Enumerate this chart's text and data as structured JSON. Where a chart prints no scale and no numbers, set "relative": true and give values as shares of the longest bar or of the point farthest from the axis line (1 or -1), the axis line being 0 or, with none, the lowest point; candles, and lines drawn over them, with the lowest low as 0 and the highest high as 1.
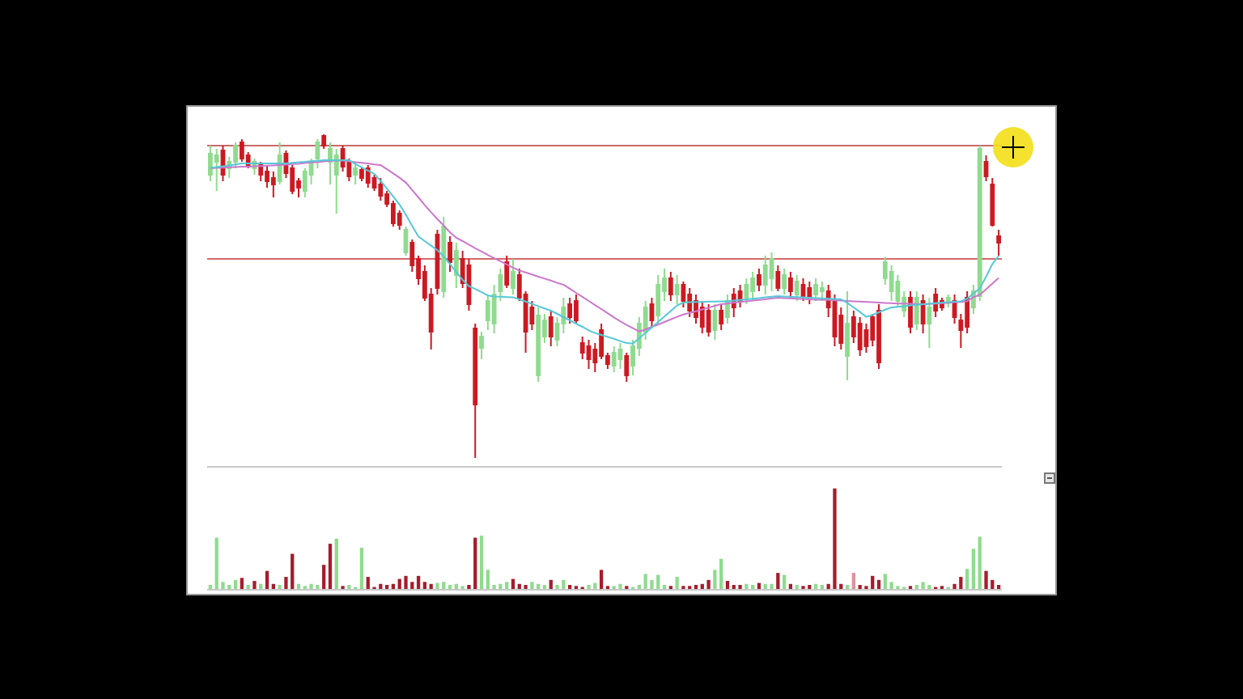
{
  "chart_data": [
    {
      "type": "candlestick",
      "relative": true,
      "categories": [
        null,
        null,
        null,
        null,
        null,
        null,
        null,
        null,
        null,
        null,
        null,
        null,
        null,
        null,
        null,
        null,
        null,
        null,
        null,
        null,
        null,
        null,
        null,
        null,
        null,
        null,
        null,
        null,
        null,
        null,
        null,
        null,
        null,
        null,
        null,
        null,
        null,
        null,
        null,
        null,
        null,
        null,
        null,
        null,
        null,
        null,
        null,
        null,
        null,
        null,
        null,
        null,
        null,
        null,
        null,
        null,
        null,
        null,
        null,
        null,
        null,
        null,
        null,
        null,
        null,
        null,
        null,
        null,
        null,
        null,
        null,
        null,
        null,
        null,
        null,
        null,
        null,
        null,
        null,
        null,
        null,
        null,
        null,
        null,
        null,
        null,
        null,
        null,
        null,
        null,
        null,
        null,
        null,
        null,
        null,
        null,
        null,
        null,
        null,
        null,
        null,
        null,
        null,
        null,
        null,
        null,
        null,
        null,
        null,
        null,
        null,
        null,
        null,
        null,
        null,
        null,
        null,
        null,
        null,
        null,
        null,
        null,
        null,
        null,
        null,
        null
      ],
      "ohlc": [
        [
          0.875,
          0.965,
          0.855,
          0.94
        ],
        [
          0.915,
          0.955,
          0.825,
          0.935
        ],
        [
          0.95,
          0.965,
          0.855,
          0.875
        ],
        [
          0.895,
          0.93,
          0.865,
          0.915
        ],
        [
          0.915,
          0.975,
          0.895,
          0.965
        ],
        [
          0.975,
          0.985,
          0.915,
          0.925
        ],
        [
          0.935,
          0.945,
          0.895,
          0.905
        ],
        [
          0.895,
          0.925,
          0.875,
          0.915
        ],
        [
          0.905,
          0.915,
          0.855,
          0.875
        ],
        [
          0.885,
          0.905,
          0.835,
          0.855
        ],
        [
          0.865,
          0.885,
          0.805,
          0.845
        ],
        [
          0.855,
          0.975,
          0.845,
          0.935
        ],
        [
          0.94,
          0.95,
          0.865,
          0.88
        ],
        [
          0.895,
          0.905,
          0.815,
          0.825
        ],
        [
          0.855,
          0.865,
          0.805,
          0.835
        ],
        [
          0.825,
          0.895,
          0.805,
          0.885
        ],
        [
          0.875,
          0.925,
          0.845,
          0.915
        ],
        [
          0.925,
          0.985,
          0.895,
          0.975
        ],
        [
          0.995,
          1,
          0.955,
          0.965
        ],
        [
          0.915,
          0.975,
          0.845,
          0.955
        ],
        [
          0.875,
          0.955,
          0.755,
          0.935
        ],
        [
          0.955,
          0.965,
          0.885,
          0.9
        ],
        [
          0.915,
          0.925,
          0.855,
          0.87
        ],
        [
          0.875,
          0.915,
          0.845,
          0.895
        ],
        [
          0.89,
          0.9,
          0.855,
          0.865
        ],
        [
          0.895,
          0.905,
          0.835,
          0.85
        ],
        [
          0.865,
          0.875,
          0.825,
          0.835
        ],
        [
          0.845,
          0.865,
          0.795,
          0.81
        ],
        [
          0.815,
          0.825,
          0.775,
          0.785
        ],
        [
          0.785,
          0.795,
          0.715,
          0.725
        ],
        [
          0.755,
          0.765,
          0.705,
          0.72
        ],
        [
          0.635,
          0.715,
          0.625,
          0.705
        ],
        [
          0.665,
          0.675,
          0.575,
          0.595
        ],
        [
          0.615,
          0.625,
          0.535,
          0.555
        ],
        [
          0.575,
          0.595,
          0.485,
          0.495
        ],
        [
          0.505,
          0.525,
          0.335,
          0.39
        ],
        [
          0.69,
          0.705,
          0.505,
          0.525
        ],
        [
          0.515,
          0.745,
          0.495,
          0.715
        ],
        [
          0.665,
          0.685,
          0.575,
          0.605
        ],
        [
          0.565,
          0.665,
          0.525,
          0.64
        ],
        [
          0.615,
          0.64,
          0.525,
          0.54
        ],
        [
          0.595,
          0.615,
          0.455,
          0.475
        ],
        [
          0.4,
          0.415,
          0,
          0.165
        ],
        [
          0.34,
          0.39,
          0.305,
          0.375
        ],
        [
          0.425,
          0.505,
          0.395,
          0.485
        ],
        [
          0.415,
          0.535,
          0.385,
          0.505
        ],
        [
          0.515,
          0.585,
          0.485,
          0.565
        ],
        [
          0.605,
          0.625,
          0.525,
          0.535
        ],
        [
          0.525,
          0.615,
          0.505,
          0.575
        ],
        [
          0.565,
          0.585,
          0.485,
          0.495
        ],
        [
          0.505,
          0.515,
          0.325,
          0.39
        ],
        [
          0.465,
          0.485,
          0.395,
          0.415
        ],
        [
          0.255,
          0.465,
          0.235,
          0.44
        ],
        [
          0.375,
          0.445,
          0.355,
          0.425
        ],
        [
          0.435,
          0.455,
          0.345,
          0.375
        ],
        [
          0.365,
          0.435,
          0.345,
          0.415
        ],
        [
          0.415,
          0.495,
          0.385,
          0.465
        ],
        [
          0.475,
          0.495,
          0.415,
          0.435
        ],
        [
          0.485,
          0.505,
          0.415,
          0.425
        ],
        [
          0.355,
          0.375,
          0.305,
          0.325
        ],
        [
          0.345,
          0.365,
          0.275,
          0.305
        ],
        [
          0.335,
          0.355,
          0.265,
          0.295
        ],
        [
          0.395,
          0.415,
          0.305,
          0.315
        ],
        [
          0.315,
          0.325,
          0.275,
          0.29
        ],
        [
          0.285,
          0.345,
          0.265,
          0.325
        ],
        [
          0.305,
          0.355,
          0.275,
          0.335
        ],
        [
          0.315,
          0.325,
          0.235,
          0.255
        ],
        [
          0.285,
          0.365,
          0.255,
          0.345
        ],
        [
          0.34,
          0.435,
          0.315,
          0.415
        ],
        [
          0.39,
          0.485,
          0.365,
          0.465
        ],
        [
          0.475,
          0.495,
          0.405,
          0.425
        ],
        [
          0.44,
          0.565,
          0.415,
          0.535
        ],
        [
          0.515,
          0.585,
          0.485,
          0.555
        ],
        [
          0.555,
          0.575,
          0.485,
          0.505
        ],
        [
          0.505,
          0.565,
          0.475,
          0.535
        ],
        [
          0.535,
          0.545,
          0.465,
          0.485
        ],
        [
          0.505,
          0.525,
          0.435,
          0.455
        ],
        [
          0.485,
          0.505,
          0.415,
          0.435
        ],
        [
          0.465,
          0.485,
          0.385,
          0.405
        ],
        [
          0.455,
          0.475,
          0.375,
          0.39
        ],
        [
          0.395,
          0.475,
          0.365,
          0.455
        ],
        [
          0.455,
          0.475,
          0.395,
          0.415
        ],
        [
          0.435,
          0.505,
          0.415,
          0.485
        ],
        [
          0.505,
          0.525,
          0.435,
          0.465
        ],
        [
          0.515,
          0.535,
          0.465,
          0.485
        ],
        [
          0.495,
          0.555,
          0.475,
          0.535
        ],
        [
          0.515,
          0.575,
          0.485,
          0.555
        ],
        [
          0.565,
          0.585,
          0.515,
          0.535
        ],
        [
          0.535,
          0.625,
          0.505,
          0.595
        ],
        [
          0.555,
          0.635,
          0.515,
          0.615
        ],
        [
          0.575,
          0.595,
          0.515,
          0.525
        ],
        [
          0.525,
          0.585,
          0.505,
          0.565
        ],
        [
          0.555,
          0.575,
          0.495,
          0.515
        ],
        [
          0.505,
          0.565,
          0.485,
          0.545
        ],
        [
          0.535,
          0.555,
          0.485,
          0.5
        ],
        [
          0.525,
          0.545,
          0.475,
          0.495
        ],
        [
          0.505,
          0.555,
          0.485,
          0.535
        ],
        [
          0.515,
          0.545,
          0.485,
          0.525
        ],
        [
          0.515,
          0.535,
          0.435,
          0.465
        ],
        [
          0.485,
          0.505,
          0.345,
          0.375
        ],
        [
          0.44,
          0.465,
          0.335,
          0.355
        ],
        [
          0.315,
          0.515,
          0.24,
          0.415
        ],
        [
          0.435,
          0.455,
          0.355,
          0.375
        ],
        [
          0.415,
          0.435,
          0.315,
          0.335
        ],
        [
          0.395,
          0.415,
          0.325,
          0.345
        ],
        [
          0.435,
          0.445,
          0.345,
          0.365
        ],
        [
          0.455,
          0.475,
          0.275,
          0.295
        ],
        [
          0.555,
          0.62,
          0.535,
          0.605
        ],
        [
          0.515,
          0.595,
          0.485,
          0.575
        ],
        [
          0.485,
          0.565,
          0.465,
          0.545
        ],
        [
          0.455,
          0.515,
          0.435,
          0.495
        ],
        [
          0.495,
          0.515,
          0.385,
          0.405
        ],
        [
          0.415,
          0.515,
          0.395,
          0.495
        ],
        [
          0.485,
          0.505,
          0.385,
          0.415
        ],
        [
          0.415,
          0.495,
          0.34,
          0.465
        ],
        [
          0.505,
          0.525,
          0.435,
          0.455
        ],
        [
          0.485,
          0.495,
          0.455,
          0.465
        ],
        [
          0.485,
          0.505,
          0.465,
          0.495
        ],
        [
          0.485,
          0.505,
          0.415,
          0.435
        ],
        [
          0.425,
          0.445,
          0.34,
          0.395
        ],
        [
          0.495,
          0.515,
          0.385,
          0.405
        ],
        [
          0.465,
          0.535,
          0.445,
          0.515
        ],
        [
          0.5,
          0.965,
          0.485,
          0.955
        ],
        [
          0.915,
          0.935,
          0.855,
          0.87
        ],
        [
          0.845,
          0.865,
          0.715,
          0.72
        ],
        [
          0.685,
          0.705,
          0.625,
          0.665
        ]
      ],
      "colors": [
        "#8fdb8f",
        "#8fdb8f",
        "#cc1a22",
        "#8fdb8f",
        "#8fdb8f",
        "#cc1a22",
        "#cc1a22",
        "#8fdb8f",
        "#cc1a22",
        "#cc1a22",
        "#cc1a22",
        "#8fdb8f",
        "#cc1a22",
        "#cc1a22",
        "#cc1a22",
        "#8fdb8f",
        "#8fdb8f",
        "#8fdb8f",
        "#cc1a22",
        "#8fdb8f",
        "#8fdb8f",
        "#cc1a22",
        "#cc1a22",
        "#8fdb8f",
        "#cc1a22",
        "#cc1a22",
        "#cc1a22",
        "#cc1a22",
        "#cc1a22",
        "#cc1a22",
        "#cc1a22",
        "#8fdb8f",
        "#cc1a22",
        "#cc1a22",
        "#cc1a22",
        "#cc1a22",
        "#cc1a22",
        "#8fdb8f",
        "#cc1a22",
        "#8fdb8f",
        "#cc1a22",
        "#cc1a22",
        "#cc1a22",
        "#8fdb8f",
        "#8fdb8f",
        "#8fdb8f",
        "#8fdb8f",
        "#cc1a22",
        "#8fdb8f",
        "#cc1a22",
        "#cc1a22",
        "#cc1a22",
        "#8fdb8f",
        "#8fdb8f",
        "#cc1a22",
        "#8fdb8f",
        "#8fdb8f",
        "#cc1a22",
        "#cc1a22",
        "#cc1a22",
        "#cc1a22",
        "#cc1a22",
        "#cc1a22",
        "#cc1a22",
        "#8fdb8f",
        "#8fdb8f",
        "#cc1a22",
        "#8fdb8f",
        "#8fdb8f",
        "#8fdb8f",
        "#cc1a22",
        "#8fdb8f",
        "#8fdb8f",
        "#cc1a22",
        "#8fdb8f",
        "#cc1a22",
        "#cc1a22",
        "#cc1a22",
        "#cc1a22",
        "#cc1a22",
        "#8fdb8f",
        "#cc1a22",
        "#8fdb8f",
        "#cc1a22",
        "#cc1a22",
        "#8fdb8f",
        "#8fdb8f",
        "#cc1a22",
        "#8fdb8f",
        "#8fdb8f",
        "#cc1a22",
        "#8fdb8f",
        "#cc1a22",
        "#8fdb8f",
        "#cc1a22",
        "#cc1a22",
        "#8fdb8f",
        "#8fdb8f",
        "#cc1a22",
        "#cc1a22",
        "#cc1a22",
        "#8fdb8f",
        "#cc1a22",
        "#cc1a22",
        "#cc1a22",
        "#cc1a22",
        "#cc1a22",
        "#8fdb8f",
        "#8fdb8f",
        "#8fdb8f",
        "#8fdb8f",
        "#cc1a22",
        "#8fdb8f",
        "#cc1a22",
        "#8fdb8f",
        "#cc1a22",
        "#cc1a22",
        "#8fdb8f",
        "#cc1a22",
        "#cc1a22",
        "#cc1a22",
        "#8fdb8f",
        "#8fdb8f",
        "#cc1a22",
        "#cc1a22",
        "#cc1a22"
      ],
      "series": [
        {
          "type": "line",
          "color": "#cc77cc",
          "values": [
            0.895,
            0.896,
            0.897,
            0.898,
            0.899,
            0.9,
            0.9,
            0.901,
            0.902,
            0.903,
            0.904,
            0.905,
            0.906,
            0.908,
            0.909,
            0.911,
            0.913,
            0.914,
            0.916,
            0.918,
            0.919,
            0.919,
            0.917,
            0.914,
            0.912,
            0.91,
            0.907,
            0.905,
            0.892,
            0.879,
            0.866,
            0.851,
            0.828,
            0.805,
            0.781,
            0.759,
            0.738,
            0.718,
            0.697,
            0.68,
            0.67,
            0.659,
            0.648,
            0.638,
            0.627,
            0.617,
            0.608,
            0.598,
            0.588,
            0.579,
            0.573,
            0.567,
            0.56,
            0.554,
            0.548,
            0.541,
            0.535,
            0.523,
            0.51,
            0.498,
            0.485,
            0.472,
            0.46,
            0.447,
            0.434,
            0.422,
            0.411,
            0.401,
            0.391,
            0.397,
            0.405,
            0.412,
            0.42,
            0.428,
            0.436,
            0.443,
            0.448,
            0.453,
            0.459,
            0.464,
            0.47,
            0.475,
            0.477,
            0.48,
            0.482,
            0.484,
            0.486,
            0.488,
            0.49,
            0.493,
            0.495,
            0.494,
            0.493,
            0.492,
            0.491,
            0.49,
            0.489,
            0.489,
            0.488,
            0.487,
            0.486,
            0.485,
            0.484,
            0.483,
            0.482,
            0.481,
            0.48,
            0.479,
            0.478,
            0.477,
            0.477,
            0.476,
            0.475,
            0.475,
            0.476,
            0.477,
            0.478,
            0.479,
            0.481,
            0.482,
            0.484,
            0.497,
            0.504,
            0.521,
            0.539,
            0.556
          ]
        },
        {
          "type": "line",
          "color": "#55c8d8",
          "values": [
            0.896,
            0.899,
            0.901,
            0.904,
            0.907,
            0.91,
            0.91,
            0.91,
            0.91,
            0.91,
            0.91,
            0.91,
            0.91,
            0.912,
            0.914,
            0.915,
            0.917,
            0.918,
            0.92,
            0.92,
            0.92,
            0.92,
            0.92,
            0.908,
            0.898,
            0.888,
            0.878,
            0.856,
            0.832,
            0.808,
            0.783,
            0.752,
            0.717,
            0.684,
            0.67,
            0.656,
            0.642,
            0.623,
            0.599,
            0.574,
            0.55,
            0.531,
            0.522,
            0.512,
            0.502,
            0.499,
            0.498,
            0.497,
            0.496,
            0.49,
            0.483,
            0.476,
            0.469,
            0.462,
            0.455,
            0.445,
            0.435,
            0.425,
            0.415,
            0.405,
            0.394,
            0.386,
            0.38,
            0.374,
            0.368,
            0.361,
            0.355,
            0.353,
            0.37,
            0.386,
            0.403,
            0.42,
            0.437,
            0.454,
            0.471,
            0.48,
            0.481,
            0.482,
            0.482,
            0.483,
            0.483,
            0.484,
            0.484,
            0.486,
            0.488,
            0.49,
            0.492,
            0.494,
            0.496,
            0.498,
            0.5,
            0.499,
            0.498,
            0.497,
            0.496,
            0.495,
            0.494,
            0.493,
            0.492,
            0.491,
            0.49,
            0.479,
            0.465,
            0.451,
            0.436,
            0.442,
            0.45,
            0.458,
            0.465,
            0.467,
            0.469,
            0.471,
            0.473,
            0.475,
            0.476,
            0.478,
            0.48,
            0.481,
            0.483,
            0.484,
            0.492,
            0.508,
            0.524,
            0.56,
            0.599,
            0.625
          ]
        }
      ],
      "ref_lines": [
        {
          "axis": "y",
          "value": 0.965,
          "color": "#c86a6a"
        },
        {
          "axis": "y",
          "value": 0.615,
          "color": "#d46a6a"
        }
      ]
    },
    {
      "type": "bar",
      "relative": true,
      "categories": [
        null,
        null,
        null,
        null,
        null,
        null,
        null,
        null,
        null,
        null,
        null,
        null,
        null,
        null,
        null,
        null,
        null,
        null,
        null,
        null,
        null,
        null,
        null,
        null,
        null,
        null,
        null,
        null,
        null,
        null,
        null,
        null,
        null,
        null,
        null,
        null,
        null,
        null,
        null,
        null,
        null,
        null,
        null,
        null,
        null,
        null,
        null,
        null,
        null,
        null,
        null,
        null,
        null,
        null,
        null,
        null,
        null,
        null,
        null,
        null,
        null,
        null,
        null,
        null,
        null,
        null,
        null,
        null,
        null,
        null,
        null,
        null,
        null,
        null,
        null,
        null,
        null,
        null,
        null,
        null,
        null,
        null,
        null,
        null,
        null,
        null,
        null,
        null,
        null,
        null,
        null,
        null,
        null,
        null,
        null,
        null,
        null,
        null,
        null,
        null,
        null,
        null,
        null,
        null,
        null,
        null,
        null,
        null,
        null,
        null,
        null,
        null,
        null,
        null,
        null,
        null,
        null,
        null,
        null,
        null,
        null,
        null,
        null,
        null,
        null,
        null
      ],
      "values": [
        0.04,
        0.51,
        0.07,
        0.04,
        0.09,
        0.11,
        0.04,
        0.08,
        0.05,
        0.18,
        0.05,
        0.04,
        0.12,
        0.35,
        0.05,
        0.03,
        0.05,
        0.04,
        0.24,
        0.45,
        0.5,
        0.03,
        0.04,
        0.02,
        0.41,
        0.12,
        0.02,
        0.05,
        0.04,
        0.05,
        0.1,
        0.13,
        0.07,
        0.13,
        0.07,
        0.05,
        0.06,
        0.07,
        0.04,
        0.05,
        0.03,
        0.04,
        0.51,
        0.53,
        0.19,
        0.04,
        0.05,
        0.07,
        0.1,
        0.05,
        0.04,
        0.07,
        0.05,
        0.04,
        0.09,
        0.04,
        0.09,
        0.04,
        0.03,
        0.02,
        0.04,
        0.06,
        0.19,
        0.03,
        0.03,
        0.05,
        0.03,
        0.02,
        0.04,
        0.15,
        0.09,
        0.14,
        0.04,
        0.03,
        0.12,
        0.03,
        0.03,
        0.04,
        0.05,
        0.09,
        0.19,
        0.3,
        0.08,
        0.04,
        0.04,
        0.05,
        0.04,
        0.06,
        0.05,
        0.05,
        0.16,
        0.14,
        0.05,
        0.04,
        0.03,
        0.04,
        0.05,
        0.04,
        0.05,
        1,
        0.05,
        0.04,
        0.16,
        0.04,
        0.03,
        0.13,
        0.09,
        0.15,
        0.07,
        0.03,
        0.02,
        0.03,
        0.04,
        0.07,
        0.04,
        0.02,
        0.03,
        0.02,
        0.05,
        0.12,
        0.2,
        0.4,
        0.52,
        0.18,
        0.09,
        0.04
      ],
      "colors": [
        "#8fdb8f",
        "#8fdb8f",
        "#8fdb8f",
        "#8fdb8f",
        "#8fdb8f",
        "#a61c2c",
        "#8fdb8f",
        "#a61c2c",
        "#8fdb8f",
        "#a61c2c",
        "#a61c2c",
        "#8fdb8f",
        "#a61c2c",
        "#a61c2c",
        "#8fdb8f",
        "#8fdb8f",
        "#8fdb8f",
        "#8fdb8f",
        "#a61c2c",
        "#a61c2c",
        "#8fdb8f",
        "#a61c2c",
        "#8fdb8f",
        "#8fdb8f",
        "#8fdb8f",
        "#a61c2c",
        "#a61c2c",
        "#a61c2c",
        "#a61c2c",
        "#a61c2c",
        "#a61c2c",
        "#a61c2c",
        "#a61c2c",
        "#a61c2c",
        "#a61c2c",
        "#a61c2c",
        "#8fdb8f",
        "#8fdb8f",
        "#8fdb8f",
        "#8fdb8f",
        "#8fdb8f",
        "#a61c2c",
        "#a61c2c",
        "#8fdb8f",
        "#8fdb8f",
        "#8fdb8f",
        "#8fdb8f",
        "#8fdb8f",
        "#a61c2c",
        "#a61c2c",
        "#a61c2c",
        "#8fdb8f",
        "#8fdb8f",
        "#8fdb8f",
        "#a61c2c",
        "#8fdb8f",
        "#8fdb8f",
        "#a61c2c",
        "#a61c2c",
        "#a61c2c",
        "#8fdb8f",
        "#8fdb8f",
        "#a61c2c",
        "#a61c2c",
        "#8fdb8f",
        "#8fdb8f",
        "#a61c2c",
        "#8fdb8f",
        "#8fdb8f",
        "#8fdb8f",
        "#8fdb8f",
        "#8fdb8f",
        "#8fdb8f",
        "#a61c2c",
        "#8fdb8f",
        "#a61c2c",
        "#a61c2c",
        "#a61c2c",
        "#a61c2c",
        "#a61c2c",
        "#8fdb8f",
        "#8fdb8f",
        "#a61c2c",
        "#a61c2c",
        "#a61c2c",
        "#8fdb8f",
        "#8fdb8f",
        "#a61c2c",
        "#8fdb8f",
        "#8fdb8f",
        "#a61c2c",
        "#8fdb8f",
        "#a61c2c",
        "#8fdb8f",
        "#a61c2c",
        "#a61c2c",
        "#8fdb8f",
        "#8fdb8f",
        "#a61c2c",
        "#a61c2c",
        "#a61c2c",
        "#8fdb8f",
        "#e0909c",
        "#a61c2c",
        "#a61c2c",
        "#a61c2c",
        "#a61c2c",
        "#8fdb8f",
        "#8fdb8f",
        "#8fdb8f",
        "#8fdb8f",
        "#a61c2c",
        "#8fdb8f",
        "#8fdb8f",
        "#8fdb8f",
        "#a61c2c",
        "#a61c2c",
        "#8fdb8f",
        "#a61c2c",
        "#a61c2c",
        "#8fdb8f",
        "#8fdb8f",
        "#8fdb8f",
        "#a61c2c",
        "#a61c2c",
        "#a61c2c"
      ]
    }
  ]
}
